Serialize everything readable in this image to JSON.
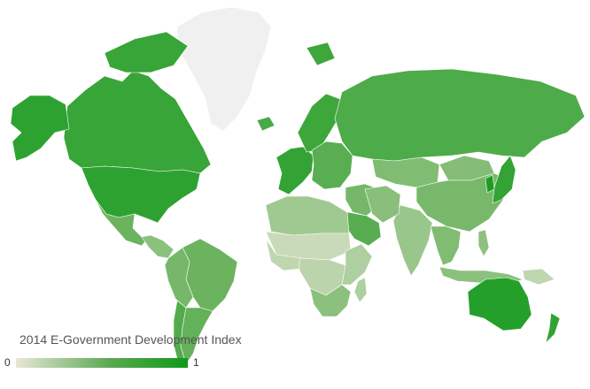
{
  "map": {
    "title": "",
    "projection": "mercator",
    "colors": {
      "low": "#e8e7d7",
      "mid": "#6cb35f",
      "high": "#0f9a1a",
      "no_data": "#f0f0f0",
      "border": "#ffffff"
    },
    "regions": [
      {
        "name": "Greenland",
        "value": null
      },
      {
        "name": "Canada",
        "value": 0.83
      },
      {
        "name": "United States",
        "value": 0.87
      },
      {
        "name": "Alaska",
        "value": 0.87
      },
      {
        "name": "Mexico",
        "value": 0.6
      },
      {
        "name": "Central America",
        "value": 0.45
      },
      {
        "name": "Brazil",
        "value": 0.6
      },
      {
        "name": "Argentina",
        "value": 0.64
      },
      {
        "name": "Chile",
        "value": 0.71
      },
      {
        "name": "Andean countries",
        "value": 0.55
      },
      {
        "name": "Western Europe",
        "value": 0.85
      },
      {
        "name": "Scandinavia",
        "value": 0.8
      },
      {
        "name": "Eastern Europe",
        "value": 0.68
      },
      {
        "name": "Russia",
        "value": 0.73
      },
      {
        "name": "Central Asia",
        "value": 0.5
      },
      {
        "name": "Mongolia",
        "value": 0.48
      },
      {
        "name": "China",
        "value": 0.54
      },
      {
        "name": "India",
        "value": 0.38
      },
      {
        "name": "Middle East",
        "value": 0.55
      },
      {
        "name": "Iran",
        "value": 0.46
      },
      {
        "name": "Saudi Arabia",
        "value": 0.69
      },
      {
        "name": "North Africa",
        "value": 0.35
      },
      {
        "name": "Sahel",
        "value": 0.15
      },
      {
        "name": "West Africa",
        "value": 0.2
      },
      {
        "name": "Central Africa",
        "value": 0.22
      },
      {
        "name": "East Africa",
        "value": 0.28
      },
      {
        "name": "Southern Africa",
        "value": 0.45
      },
      {
        "name": "Madagascar",
        "value": 0.28
      },
      {
        "name": "Japan",
        "value": 0.85
      },
      {
        "name": "Korea",
        "value": 0.95
      },
      {
        "name": "Southeast Asia",
        "value": 0.5
      },
      {
        "name": "Indonesia",
        "value": 0.45
      },
      {
        "name": "Philippines",
        "value": 0.44
      },
      {
        "name": "Papua New Guinea",
        "value": 0.2
      },
      {
        "name": "Australia",
        "value": 0.91
      },
      {
        "name": "New Zealand",
        "value": 0.86
      },
      {
        "name": "Iceland",
        "value": 0.75
      },
      {
        "name": "Svalbard",
        "value": 0.8
      },
      {
        "name": "Arctic Canada islands",
        "value": 0.83
      }
    ]
  },
  "legend": {
    "title": "2014 E-Government Development Index",
    "min_label": "0",
    "max_label": "1",
    "min": 0,
    "max": 1
  }
}
